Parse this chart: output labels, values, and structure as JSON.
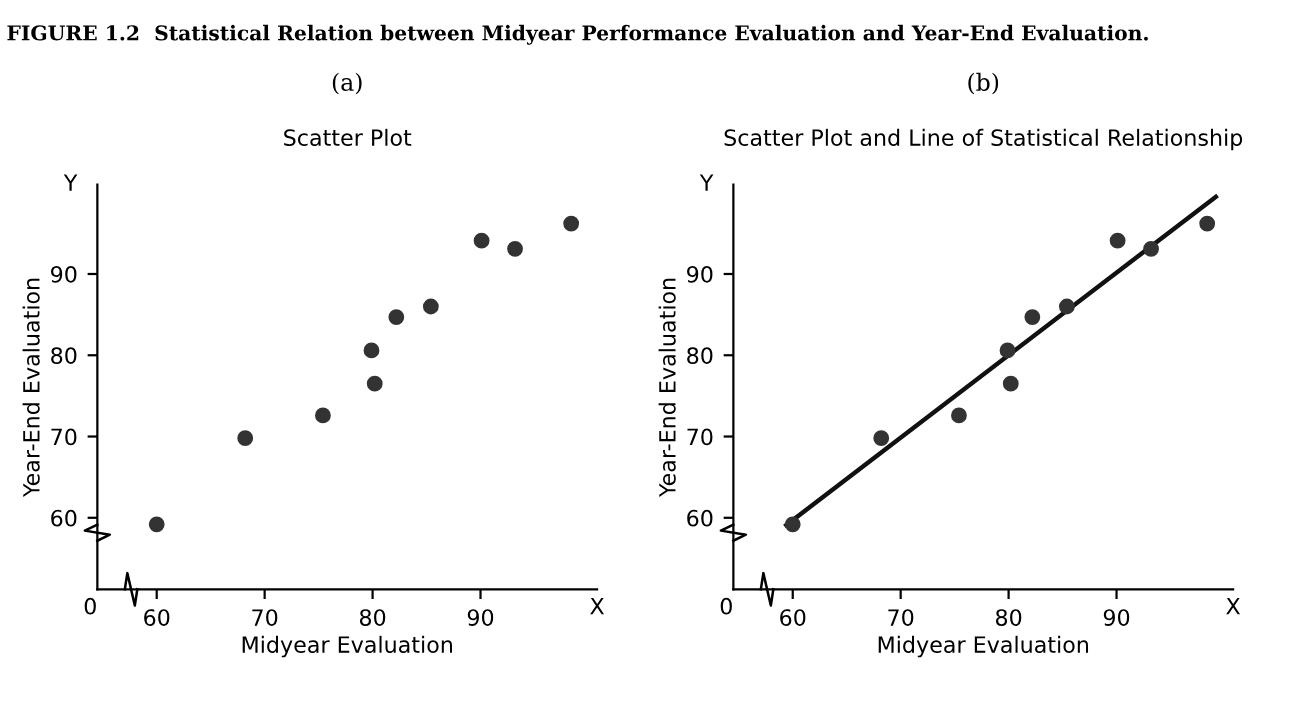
{
  "chart_data": [
    {
      "type": "scatter",
      "title": "Scatter Plot",
      "xlabel": "Midyear Evaluation",
      "ylabel": "Year-End Evaluation",
      "annotations": [
        "FIGURE 1.2  Statistical Relation between Midyear Performance Evaluation and Year-End Evaluation.",
        "(a)",
        "0",
        "X",
        "Y"
      ],
      "xlim": [
        54.5,
        100.8
      ],
      "ylim": [
        51.2,
        101
      ],
      "xticks": [
        60,
        70,
        80,
        90
      ],
      "yticks": [
        60,
        70,
        80,
        90
      ],
      "grid": false,
      "marker": "circle",
      "series": [
        {
          "color": "#333333",
          "x": [
            60,
            68.2,
            75.4,
            79.9,
            80.2,
            82.2,
            85.4,
            90.1,
            93.2,
            98.4
          ],
          "values": [
            59.2,
            69.8,
            72.6,
            80.6,
            76.5,
            84.7,
            86.0,
            94.1,
            93.1,
            96.2
          ]
        }
      ]
    },
    {
      "type": "scatter",
      "title": "Scatter Plot and Line of Statistical Relationship",
      "xlabel": "Midyear Evaluation",
      "ylabel": "Year-End Evaluation",
      "annotations": [
        "(b)",
        "0",
        "X",
        "Y"
      ],
      "xlim": [
        54.5,
        100.8
      ],
      "ylim": [
        51.2,
        101
      ],
      "xticks": [
        60,
        70,
        80,
        90
      ],
      "yticks": [
        60,
        70,
        80,
        90
      ],
      "grid": false,
      "marker": "circle",
      "series": [
        {
          "color": "#333333",
          "x": [
            60,
            68.2,
            75.4,
            79.9,
            80.2,
            82.2,
            85.4,
            90.1,
            93.2,
            98.4
          ],
          "values": [
            59.2,
            69.8,
            72.6,
            80.6,
            76.5,
            84.7,
            86.0,
            94.1,
            93.1,
            96.2
          ]
        },
        {
          "type": "line",
          "color": "#111111",
          "marker": "none",
          "x": [
            59.4,
            99.2
          ],
          "values": [
            59.1,
            99.5
          ]
        }
      ]
    }
  ]
}
